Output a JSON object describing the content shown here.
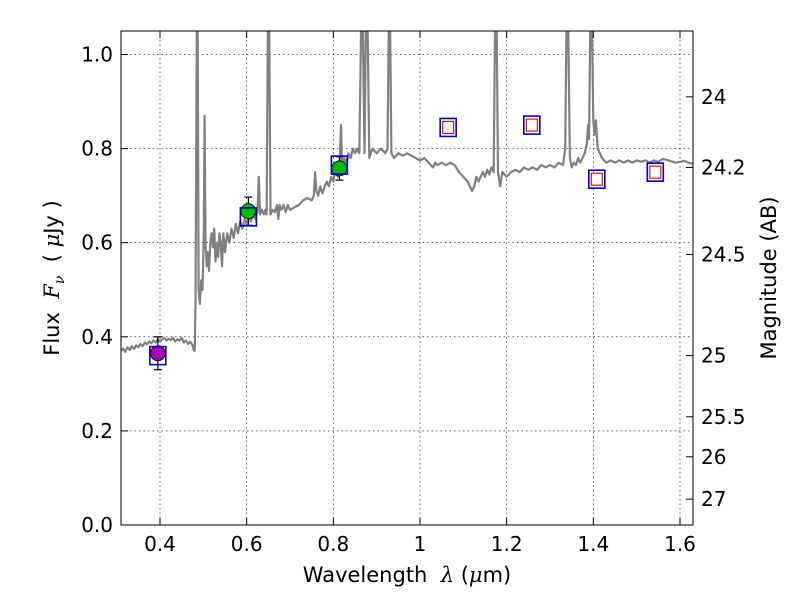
{
  "chart_data": {
    "type": "scatter",
    "xlabel": {
      "pre": "Wavelength  ",
      "sym": "λ",
      "post": " (",
      "mu": "μ",
      "unit": "m)"
    },
    "ylabel": {
      "pre": "Flux  ",
      "sym": "F",
      "sub": "ν",
      "mid": "  ( ",
      "mu": "μ",
      "unit": "Jy )"
    },
    "ylabel_right": "Magnitude (AB)",
    "xlim": [
      0.31,
      1.63
    ],
    "ylim": [
      0.0,
      1.05
    ],
    "x_ticks": [
      0.4,
      0.6,
      0.8,
      1.0,
      1.2,
      1.4,
      1.6
    ],
    "x_tick_labels": [
      "0.4",
      "0.6",
      "0.8",
      "1",
      "1.2",
      "1.4",
      "1.6"
    ],
    "y_ticks": [
      0.0,
      0.2,
      0.4,
      0.6,
      0.8,
      1.0
    ],
    "y_tick_labels": [
      "0.0",
      "0.2",
      "0.4",
      "0.6",
      "0.8",
      "1.0"
    ],
    "right_ticks": [
      {
        "label": "24",
        "flux": 0.91
      },
      {
        "label": "24.2",
        "flux": 0.76
      },
      {
        "label": "24.5",
        "flux": 0.575
      },
      {
        "label": "25",
        "flux": 0.36
      },
      {
        "label": "25.5",
        "flux": 0.23
      },
      {
        "label": "26",
        "flux": 0.145
      },
      {
        "label": "27",
        "flux": 0.055
      }
    ],
    "grid": true,
    "colors": {
      "spectrum": "#808080",
      "model_box": "#0000cc",
      "upper_limit": "#dd0000",
      "purple": "#aa00aa",
      "green": "#00bb00"
    },
    "series": [
      {
        "name": "model spectrum",
        "kind": "line",
        "points": [
          [
            0.31,
            0.37
          ],
          [
            0.315,
            0.375
          ],
          [
            0.32,
            0.368
          ],
          [
            0.325,
            0.378
          ],
          [
            0.33,
            0.372
          ],
          [
            0.335,
            0.38
          ],
          [
            0.34,
            0.374
          ],
          [
            0.345,
            0.382
          ],
          [
            0.35,
            0.378
          ],
          [
            0.355,
            0.385
          ],
          [
            0.36,
            0.38
          ],
          [
            0.365,
            0.388
          ],
          [
            0.37,
            0.384
          ],
          [
            0.375,
            0.39
          ],
          [
            0.38,
            0.386
          ],
          [
            0.385,
            0.392
          ],
          [
            0.39,
            0.388
          ],
          [
            0.395,
            0.395
          ],
          [
            0.4,
            0.39
          ],
          [
            0.405,
            0.395
          ],
          [
            0.41,
            0.398
          ],
          [
            0.415,
            0.392
          ],
          [
            0.42,
            0.396
          ],
          [
            0.425,
            0.393
          ],
          [
            0.43,
            0.398
          ],
          [
            0.435,
            0.39
          ],
          [
            0.44,
            0.395
          ],
          [
            0.445,
            0.392
          ],
          [
            0.45,
            0.398
          ],
          [
            0.455,
            0.388
          ],
          [
            0.46,
            0.392
          ],
          [
            0.465,
            0.385
          ],
          [
            0.47,
            0.39
          ],
          [
            0.475,
            0.382
          ],
          [
            0.478,
            0.372
          ],
          [
            0.48,
            0.37
          ],
          [
            0.482,
            0.47
          ],
          [
            0.485,
            1.06
          ],
          [
            0.487,
            1.06
          ],
          [
            0.489,
            0.5
          ],
          [
            0.492,
            0.47
          ],
          [
            0.495,
            0.52
          ],
          [
            0.498,
            0.5
          ],
          [
            0.501,
            0.62
          ],
          [
            0.503,
            0.87
          ],
          [
            0.505,
            0.6
          ],
          [
            0.508,
            0.55
          ],
          [
            0.51,
            0.58
          ],
          [
            0.513,
            0.54
          ],
          [
            0.516,
            0.6
          ],
          [
            0.519,
            0.62
          ],
          [
            0.522,
            0.59
          ],
          [
            0.525,
            0.63
          ],
          [
            0.528,
            0.56
          ],
          [
            0.531,
            0.6
          ],
          [
            0.534,
            0.57
          ],
          [
            0.537,
            0.62
          ],
          [
            0.54,
            0.6
          ],
          [
            0.543,
            0.55
          ],
          [
            0.546,
            0.62
          ],
          [
            0.55,
            0.58
          ],
          [
            0.555,
            0.62
          ],
          [
            0.56,
            0.6
          ],
          [
            0.565,
            0.63
          ],
          [
            0.57,
            0.61
          ],
          [
            0.575,
            0.64
          ],
          [
            0.58,
            0.62
          ],
          [
            0.585,
            0.645
          ],
          [
            0.59,
            0.63
          ],
          [
            0.595,
            0.65
          ],
          [
            0.6,
            0.64
          ],
          [
            0.605,
            0.655
          ],
          [
            0.61,
            0.645
          ],
          [
            0.615,
            0.66
          ],
          [
            0.62,
            0.65
          ],
          [
            0.625,
            0.665
          ],
          [
            0.628,
            0.74
          ],
          [
            0.631,
            0.66
          ],
          [
            0.635,
            0.67
          ],
          [
            0.64,
            0.66
          ],
          [
            0.643,
            0.67
          ],
          [
            0.646,
            0.66
          ],
          [
            0.649,
            1.06
          ],
          [
            0.652,
            1.06
          ],
          [
            0.655,
            0.66
          ],
          [
            0.66,
            0.67
          ],
          [
            0.665,
            0.665
          ],
          [
            0.67,
            0.68
          ],
          [
            0.673,
            0.65
          ],
          [
            0.676,
            0.68
          ],
          [
            0.68,
            0.67
          ],
          [
            0.685,
            0.68
          ],
          [
            0.69,
            0.665
          ],
          [
            0.695,
            0.68
          ],
          [
            0.7,
            0.67
          ],
          [
            0.71,
            0.675
          ],
          [
            0.72,
            0.68
          ],
          [
            0.73,
            0.69
          ],
          [
            0.74,
            0.695
          ],
          [
            0.75,
            0.69
          ],
          [
            0.755,
            0.7
          ],
          [
            0.758,
            0.75
          ],
          [
            0.761,
            0.71
          ],
          [
            0.765,
            0.7
          ],
          [
            0.77,
            0.72
          ],
          [
            0.775,
            0.705
          ],
          [
            0.78,
            0.72
          ],
          [
            0.785,
            0.73
          ],
          [
            0.79,
            0.72
          ],
          [
            0.795,
            0.74
          ],
          [
            0.8,
            0.73
          ],
          [
            0.805,
            0.76
          ],
          [
            0.81,
            0.74
          ],
          [
            0.815,
            0.78
          ],
          [
            0.818,
            0.85
          ],
          [
            0.82,
            0.76
          ],
          [
            0.825,
            0.78
          ],
          [
            0.83,
            0.77
          ],
          [
            0.835,
            0.79
          ],
          [
            0.84,
            0.78
          ],
          [
            0.845,
            0.8
          ],
          [
            0.85,
            0.79
          ],
          [
            0.855,
            0.8
          ],
          [
            0.86,
            0.79
          ],
          [
            0.864,
            1.06
          ],
          [
            0.868,
            1.06
          ],
          [
            0.872,
            0.79
          ],
          [
            0.875,
            1.06
          ],
          [
            0.879,
            1.06
          ],
          [
            0.883,
            0.78
          ],
          [
            0.89,
            0.8
          ],
          [
            0.9,
            0.79
          ],
          [
            0.91,
            0.8
          ],
          [
            0.92,
            0.79
          ],
          [
            0.925,
            0.8
          ],
          [
            0.928,
            1.06
          ],
          [
            0.931,
            1.06
          ],
          [
            0.934,
            0.79
          ],
          [
            0.94,
            0.78
          ],
          [
            0.95,
            0.79
          ],
          [
            0.96,
            0.785
          ],
          [
            0.97,
            0.79
          ],
          [
            0.98,
            0.785
          ],
          [
            0.99,
            0.78
          ],
          [
            1.0,
            0.775
          ],
          [
            1.01,
            0.78
          ],
          [
            1.02,
            0.77
          ],
          [
            1.03,
            0.76
          ],
          [
            1.035,
            0.77
          ],
          [
            1.04,
            0.765
          ],
          [
            1.05,
            0.77
          ],
          [
            1.06,
            0.765
          ],
          [
            1.07,
            0.77
          ],
          [
            1.08,
            0.765
          ],
          [
            1.09,
            0.75
          ],
          [
            1.1,
            0.74
          ],
          [
            1.11,
            0.73
          ],
          [
            1.115,
            0.72
          ],
          [
            1.12,
            0.71
          ],
          [
            1.125,
            0.72
          ],
          [
            1.13,
            0.74
          ],
          [
            1.135,
            0.73
          ],
          [
            1.14,
            0.74
          ],
          [
            1.145,
            0.75
          ],
          [
            1.15,
            0.74
          ],
          [
            1.155,
            0.755
          ],
          [
            1.16,
            0.745
          ],
          [
            1.165,
            0.76
          ],
          [
            1.17,
            0.75
          ],
          [
            1.173,
            1.06
          ],
          [
            1.177,
            1.06
          ],
          [
            1.18,
            0.75
          ],
          [
            1.185,
            0.72
          ],
          [
            1.19,
            0.75
          ],
          [
            1.2,
            0.74
          ],
          [
            1.21,
            0.75
          ],
          [
            1.22,
            0.755
          ],
          [
            1.23,
            0.75
          ],
          [
            1.24,
            0.76
          ],
          [
            1.25,
            0.755
          ],
          [
            1.26,
            0.76
          ],
          [
            1.27,
            0.755
          ],
          [
            1.28,
            0.765
          ],
          [
            1.29,
            0.76
          ],
          [
            1.3,
            0.765
          ],
          [
            1.31,
            0.76
          ],
          [
            1.32,
            0.77
          ],
          [
            1.33,
            0.765
          ],
          [
            1.335,
            0.8
          ],
          [
            1.338,
            1.06
          ],
          [
            1.342,
            1.06
          ],
          [
            1.346,
            0.78
          ],
          [
            1.35,
            0.76
          ],
          [
            1.355,
            0.77
          ],
          [
            1.36,
            0.765
          ],
          [
            1.365,
            0.78
          ],
          [
            1.37,
            0.77
          ],
          [
            1.375,
            0.78
          ],
          [
            1.38,
            0.79
          ],
          [
            1.385,
            0.81
          ],
          [
            1.388,
            0.85
          ],
          [
            1.39,
            0.82
          ],
          [
            1.393,
            1.06
          ],
          [
            1.397,
            1.06
          ],
          [
            1.4,
            0.86
          ],
          [
            1.403,
            0.83
          ],
          [
            1.406,
            0.86
          ],
          [
            1.41,
            0.8
          ],
          [
            1.42,
            0.78
          ],
          [
            1.43,
            0.77
          ],
          [
            1.44,
            0.775
          ],
          [
            1.45,
            0.77
          ],
          [
            1.46,
            0.775
          ],
          [
            1.47,
            0.77
          ],
          [
            1.48,
            0.775
          ],
          [
            1.49,
            0.77
          ],
          [
            1.5,
            0.775
          ],
          [
            1.51,
            0.772
          ],
          [
            1.52,
            0.775
          ],
          [
            1.53,
            0.77
          ],
          [
            1.54,
            0.775
          ],
          [
            1.55,
            0.772
          ],
          [
            1.56,
            0.778
          ],
          [
            1.57,
            0.776
          ],
          [
            1.58,
            0.773
          ],
          [
            1.59,
            0.77
          ],
          [
            1.6,
            0.772
          ],
          [
            1.61,
            0.774
          ],
          [
            1.62,
            0.77
          ],
          [
            1.63,
            0.768
          ]
        ]
      },
      {
        "name": "model photometry",
        "kind": "open-square",
        "points": [
          [
            0.395,
            0.36
          ],
          [
            0.604,
            0.655
          ],
          [
            0.814,
            0.765
          ],
          [
            1.065,
            0.845
          ],
          [
            1.258,
            0.85
          ],
          [
            1.408,
            0.735
          ],
          [
            1.543,
            0.75
          ]
        ]
      },
      {
        "name": "upper limits",
        "kind": "small-open-square",
        "points": [
          [
            1.065,
            0.845
          ],
          [
            1.258,
            0.85
          ],
          [
            1.408,
            0.735
          ],
          [
            1.543,
            0.75
          ]
        ]
      },
      {
        "name": "observed",
        "kind": "circle-errorbar",
        "points": [
          {
            "x": 0.395,
            "y": 0.365,
            "err": 0.035,
            "color": "purple"
          },
          {
            "x": 0.604,
            "y": 0.667,
            "err": 0.03,
            "color": "green"
          },
          {
            "x": 0.814,
            "y": 0.758,
            "err": 0.025,
            "color": "green"
          }
        ]
      }
    ]
  }
}
